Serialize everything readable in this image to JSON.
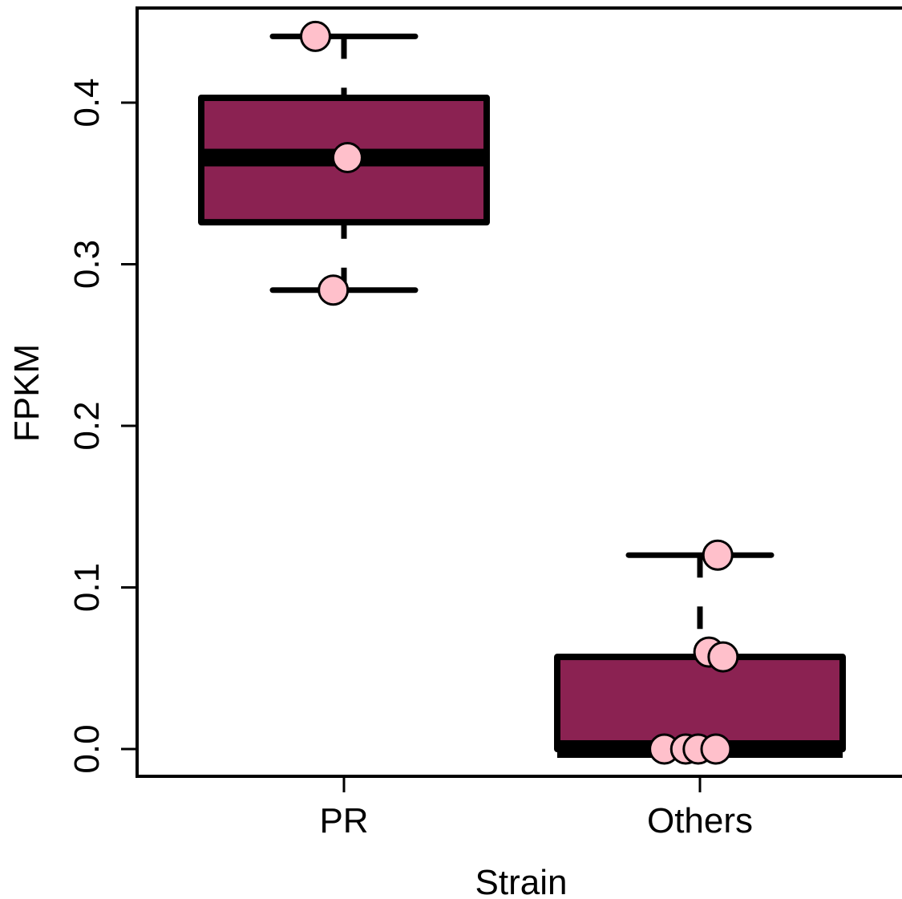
{
  "chart_data": {
    "type": "box",
    "xlabel": "Strain",
    "ylabel": "FPKM",
    "categories": [
      "PR",
      "Others"
    ],
    "yticks": [
      "0.0",
      "0.1",
      "0.2",
      "0.3",
      "0.4"
    ],
    "ylim": [
      -0.017,
      0.46
    ],
    "grid": false,
    "legend": "none",
    "colors": {
      "box_fill": "#8B2252",
      "point_fill": "#FFC0CB",
      "stroke": "#000000"
    },
    "boxes": [
      {
        "category": "PR",
        "min": 0.284,
        "q1": 0.326,
        "median": 0.366,
        "q3": 0.403,
        "max": 0.441
      },
      {
        "category": "Others",
        "min": 0.0,
        "q1": 0.0,
        "median": 0.0,
        "q3": 0.057,
        "max": 0.12
      }
    ],
    "points": [
      {
        "category": "PR",
        "y": 0.441,
        "jitter": -0.08
      },
      {
        "category": "PR",
        "y": 0.366,
        "jitter": 0.01
      },
      {
        "category": "PR",
        "y": 0.284,
        "jitter": -0.03
      },
      {
        "category": "Others",
        "y": 0.12,
        "jitter": 0.05
      },
      {
        "category": "Others",
        "y": 0.06,
        "jitter": 0.025
      },
      {
        "category": "Others",
        "y": 0.057,
        "jitter": 0.065
      },
      {
        "category": "Others",
        "y": 0.0,
        "jitter": -0.1
      },
      {
        "category": "Others",
        "y": 0.0,
        "jitter": -0.04
      },
      {
        "category": "Others",
        "y": 0.0,
        "jitter": -0.005
      },
      {
        "category": "Others",
        "y": 0.0,
        "jitter": 0.045
      }
    ]
  }
}
